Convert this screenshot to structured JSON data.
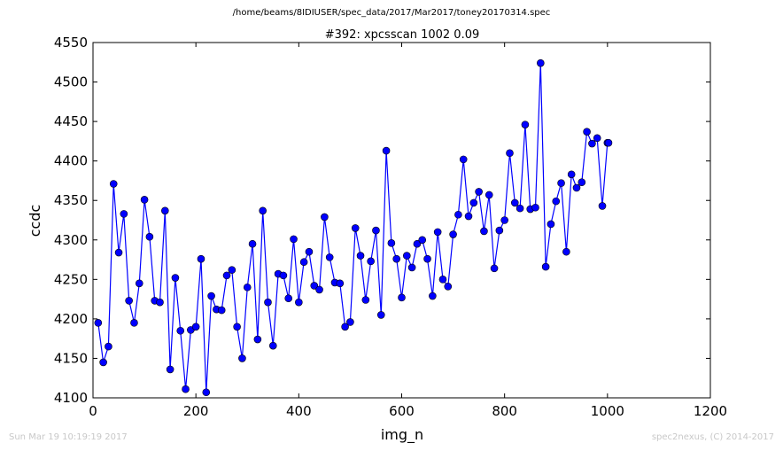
{
  "figure": {
    "suptitle": "/home/beams/8IDIUSER/spec_data/2017/Mar2017/toney20170314.spec",
    "footer_left": "Sun Mar 19 10:19:19 2017",
    "footer_right": "spec2nexus, (C) 2014-2017"
  },
  "chart_data": {
    "type": "line",
    "title": "#392: xpcsscan 1002 0.09",
    "xlabel": "img_n",
    "ylabel": "ccdc",
    "xlim": [
      0,
      1200
    ],
    "ylim": [
      4100,
      4550
    ],
    "xticks": [
      0,
      200,
      400,
      600,
      800,
      1000,
      1200
    ],
    "yticks": [
      4100,
      4150,
      4200,
      4250,
      4300,
      4350,
      4400,
      4450,
      4500,
      4550
    ],
    "grid": false,
    "line_color": "#0000ff",
    "marker_color": "#0000ff",
    "marker": "circle",
    "series": [
      {
        "x": [
          10,
          20,
          30,
          40,
          50,
          60,
          70,
          80,
          90,
          100,
          110,
          120,
          130,
          140,
          150,
          160,
          170,
          180,
          190,
          200,
          210,
          220,
          230,
          240,
          250,
          260,
          270,
          280,
          290,
          300,
          310,
          320,
          330,
          340,
          350,
          360,
          370,
          380,
          390,
          400,
          410,
          420,
          430,
          440,
          450,
          460,
          470,
          480,
          490,
          500,
          510,
          520,
          530,
          540,
          550,
          560,
          570,
          580,
          590,
          600,
          610,
          620,
          630,
          640,
          650,
          660,
          670,
          680,
          690,
          700,
          710,
          720,
          730,
          740,
          750,
          760,
          770,
          780,
          790,
          800,
          810,
          820,
          830,
          840,
          850,
          860,
          870,
          880,
          890,
          900,
          910,
          920,
          930,
          940,
          950,
          960,
          970,
          980,
          990,
          1000,
          1002
        ],
        "y": [
          4195,
          4145,
          4165,
          4371,
          4284,
          4333,
          4223,
          4195,
          4245,
          4351,
          4304,
          4223,
          4221,
          4337,
          4136,
          4252,
          4185,
          4111,
          4186,
          4190,
          4276,
          4107,
          4229,
          4212,
          4211,
          4255,
          4262,
          4190,
          4150,
          4240,
          4295,
          4174,
          4337,
          4221,
          4166,
          4257,
          4255,
          4226,
          4301,
          4221,
          4272,
          4285,
          4242,
          4237,
          4329,
          4278,
          4246,
          4245,
          4190,
          4196,
          4315,
          4280,
          4224,
          4273,
          4312,
          4205,
          4413,
          4296,
          4276,
          4227,
          4280,
          4265,
          4295,
          4300,
          4276,
          4229,
          4310,
          4250,
          4241,
          4307,
          4332,
          4402,
          4330,
          4347,
          4361,
          4311,
          4357,
          4264,
          4312,
          4325,
          4410,
          4347,
          4340,
          4446,
          4339,
          4341,
          4524,
          4266,
          4320,
          4349,
          4372,
          4285,
          4383,
          4366,
          4373,
          4437,
          4422,
          4429,
          4343,
          4423,
          4423
        ]
      }
    ]
  }
}
